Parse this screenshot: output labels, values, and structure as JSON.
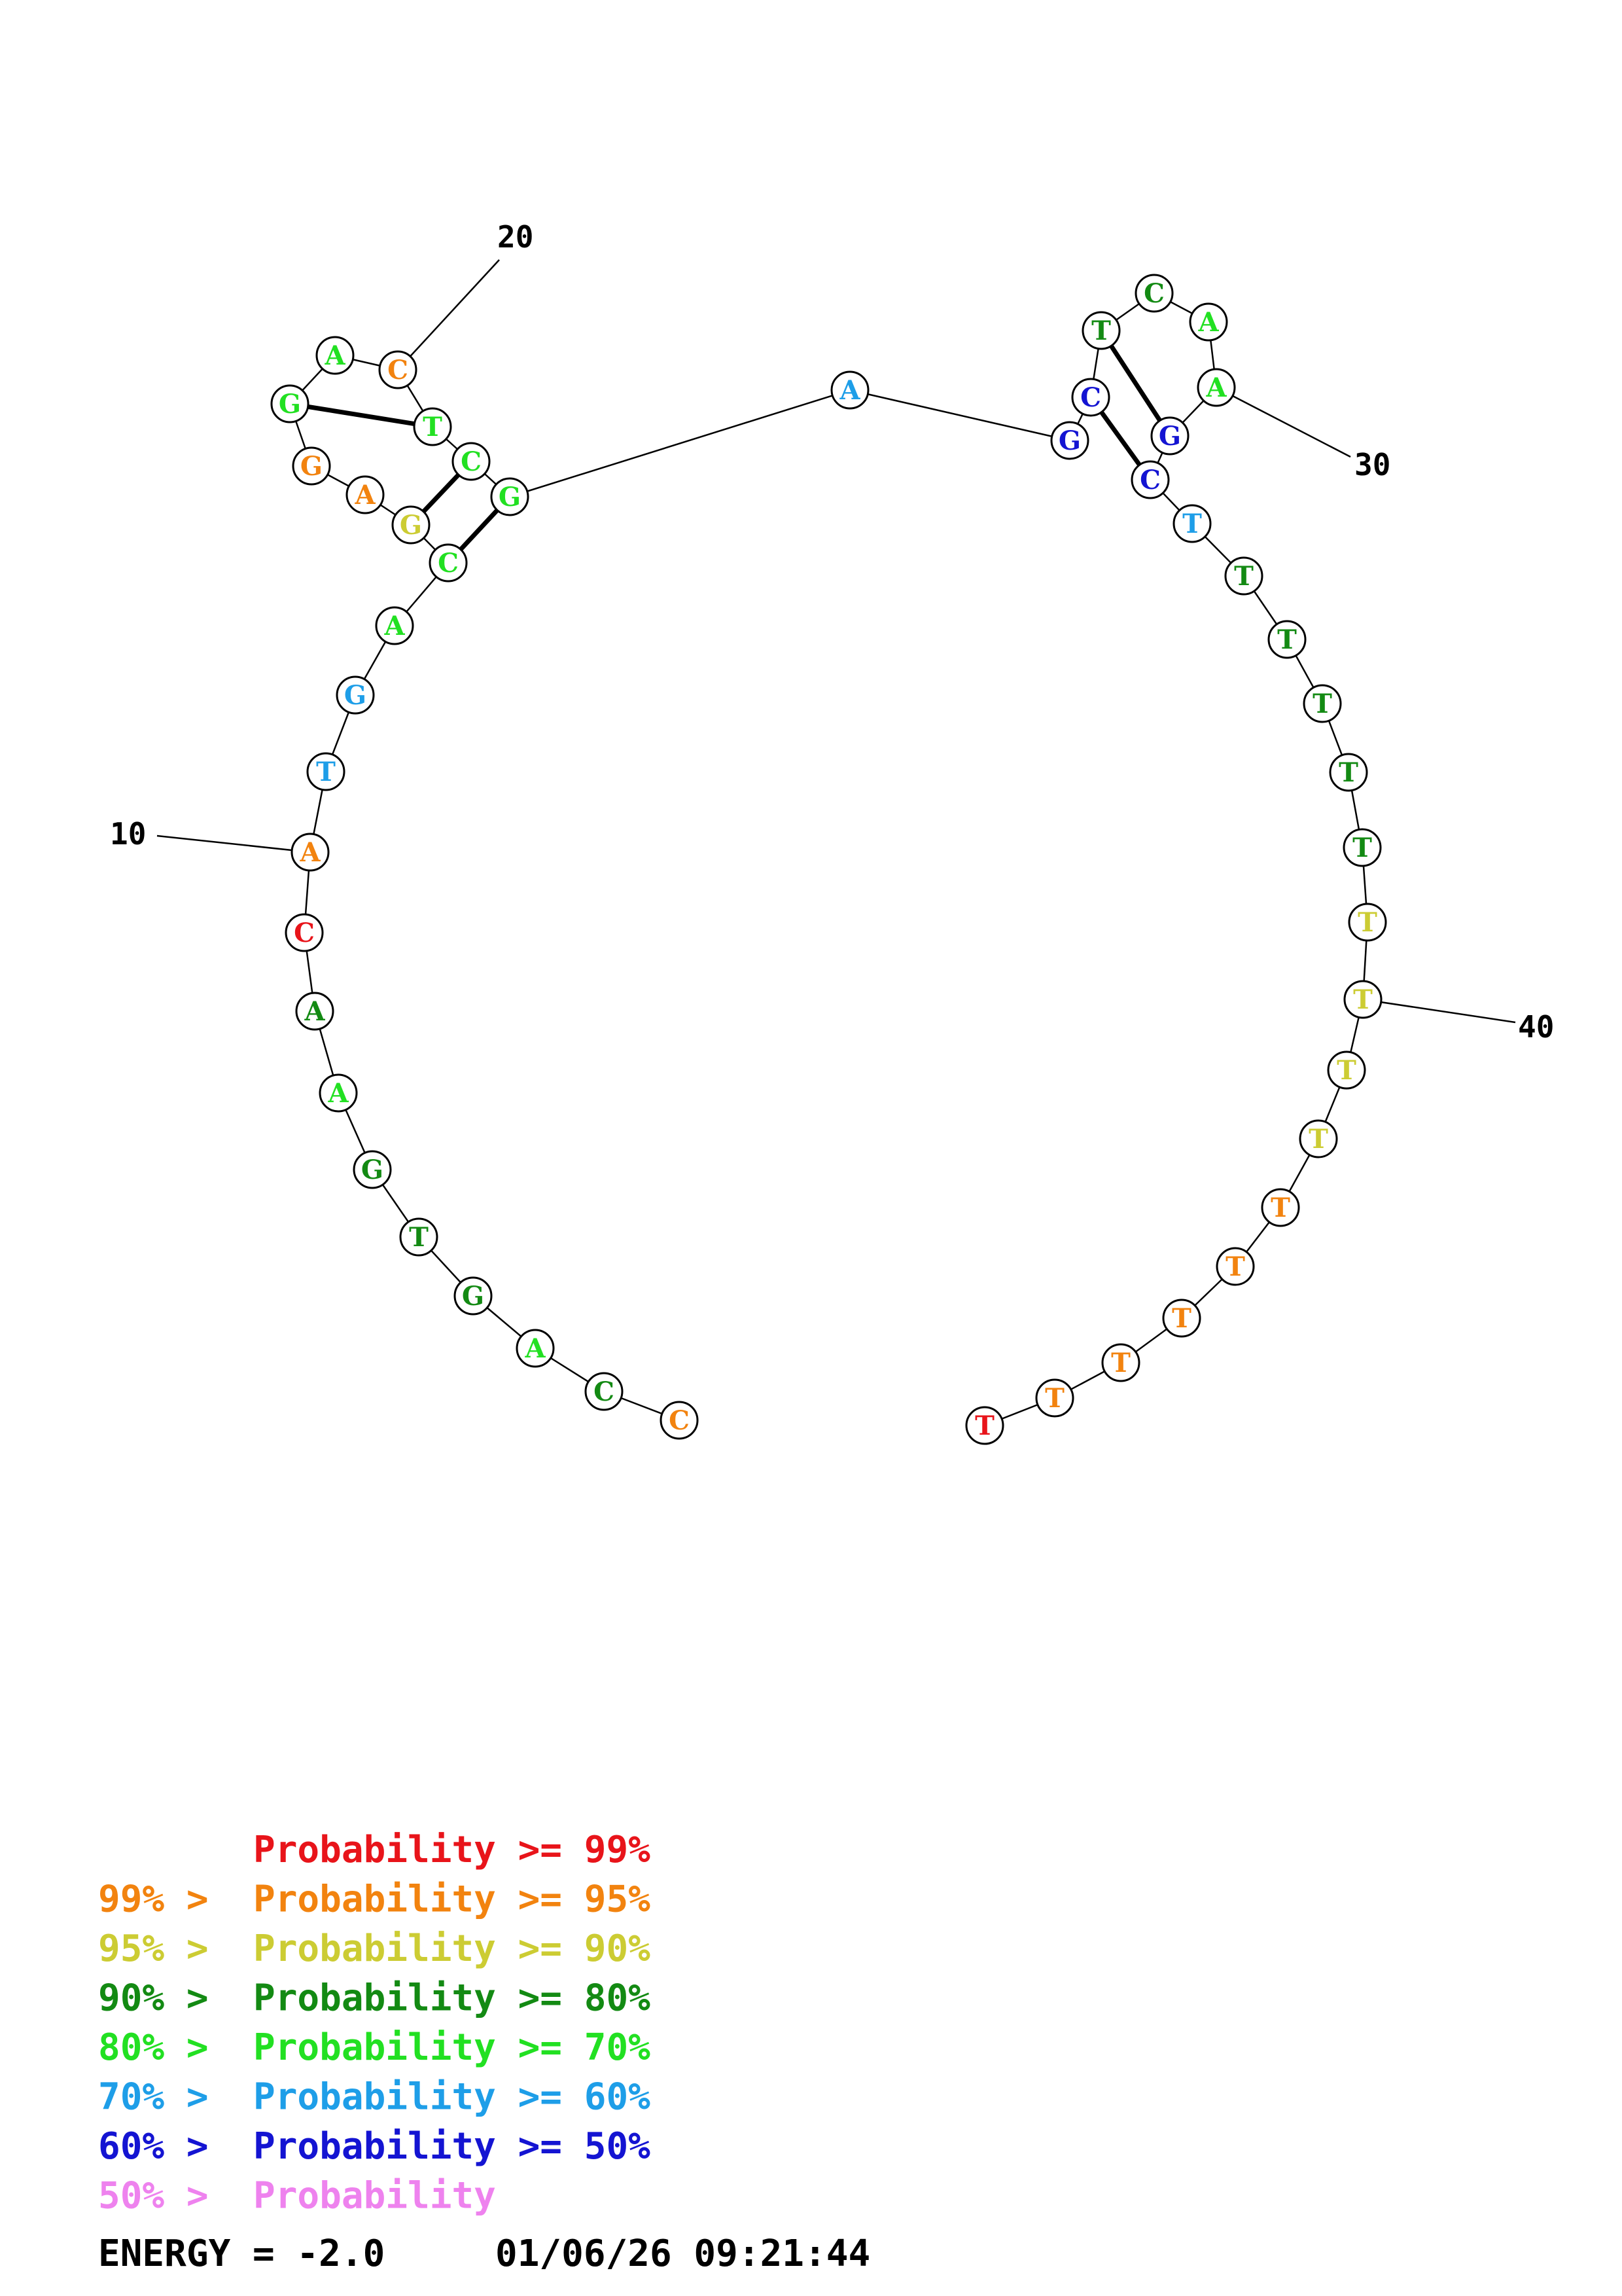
{
  "colors": {
    "c99": "#e8141a",
    "c95": "#f2830f",
    "c90": "#cccc33",
    "c80": "#138a13",
    "c70": "#22e022",
    "c60": "#1e9ee8",
    "c50": "#1414d2",
    "c0": "#ee82ee"
  },
  "structure": {
    "sequence": [
      "C",
      "C",
      "A",
      "G",
      "T",
      "G",
      "A",
      "A",
      "C",
      "A",
      "T",
      "G",
      "A",
      "C",
      "G",
      "A",
      "G",
      "G",
      "A",
      "C",
      "T",
      "C",
      "G",
      "A",
      "G",
      "C",
      "T",
      "C",
      "A",
      "A",
      "G",
      "C",
      "T",
      "T",
      "T",
      "T",
      "T",
      "T",
      "T",
      "T",
      "T",
      "T",
      "T",
      "T",
      "T",
      "T",
      "T",
      "T"
    ],
    "probability_class": [
      "c95",
      "c80",
      "c70",
      "c80",
      "c80",
      "c80",
      "c70",
      "c80",
      "c99",
      "c95",
      "c60",
      "c60",
      "c70",
      "c70",
      "c90",
      "c95",
      "c95",
      "c70",
      "c70",
      "c95",
      "c70",
      "c70",
      "c70",
      "c60",
      "c50",
      "c50",
      "c80",
      "c80",
      "c70",
      "c70",
      "c50",
      "c50",
      "c60",
      "c80",
      "c80",
      "c80",
      "c80",
      "c80",
      "c90",
      "c90",
      "c90",
      "c90",
      "c95",
      "c95",
      "c95",
      "c95",
      "c95",
      "c99"
    ],
    "pairs": [
      [
        14,
        23
      ],
      [
        15,
        22
      ],
      [
        18,
        21
      ],
      [
        26,
        32
      ],
      [
        27,
        31
      ]
    ],
    "tick_labels": [
      {
        "base": 10,
        "text": "10"
      },
      {
        "base": 20,
        "text": "20"
      },
      {
        "base": 30,
        "text": "30"
      },
      {
        "base": 40,
        "text": "40"
      }
    ]
  },
  "legend": [
    {
      "prefix": "",
      "text": "Probability >= 99%",
      "color_key": "c99"
    },
    {
      "prefix": "99% > ",
      "text": "Probability >= 95%",
      "color_key": "c95"
    },
    {
      "prefix": "95% > ",
      "text": "Probability >= 90%",
      "color_key": "c90"
    },
    {
      "prefix": "90% > ",
      "text": "Probability >= 80%",
      "color_key": "c80"
    },
    {
      "prefix": "80% > ",
      "text": "Probability >= 70%",
      "color_key": "c70"
    },
    {
      "prefix": "70% > ",
      "text": "Probability >= 60%",
      "color_key": "c60"
    },
    {
      "prefix": "60% > ",
      "text": "Probability >= 50%",
      "color_key": "c50"
    },
    {
      "prefix": "50% > ",
      "text": "Probability",
      "color_key": "c0"
    }
  ],
  "footer": {
    "energy": "ENERGY = -2.0",
    "timestamp": "01/06/26 09:21:44"
  }
}
